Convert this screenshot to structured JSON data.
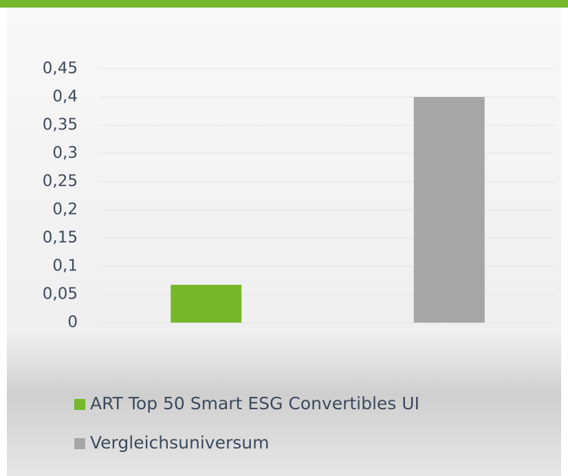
{
  "chart_data": {
    "type": "bar",
    "categories": [
      null
    ],
    "series": [
      {
        "name": "ART Top 50 Smart ESG Convertibles UI",
        "color": "#76b82a",
        "values": [
          0.067
        ]
      },
      {
        "name": "Vergleichsuniversum",
        "color": "#a6a6a6",
        "values": [
          0.4
        ]
      }
    ],
    "ylim": [
      0,
      0.45
    ],
    "yticks": [
      0,
      {
        "value": 0.05,
        "label": "0,05"
      },
      {
        "value": 0.1,
        "label": "0,1"
      },
      {
        "value": 0.15,
        "label": "0,15"
      },
      {
        "value": 0.2,
        "label": "0,2"
      },
      {
        "value": 0.25,
        "label": "0,25"
      },
      {
        "value": 0.3,
        "label": "0,3"
      },
      {
        "value": 0.35,
        "label": "0,35"
      },
      {
        "value": 0.4,
        "label": "0,4"
      },
      {
        "value": 0.45,
        "label": "0,45"
      }
    ],
    "grid": true,
    "legend": "bottom"
  }
}
